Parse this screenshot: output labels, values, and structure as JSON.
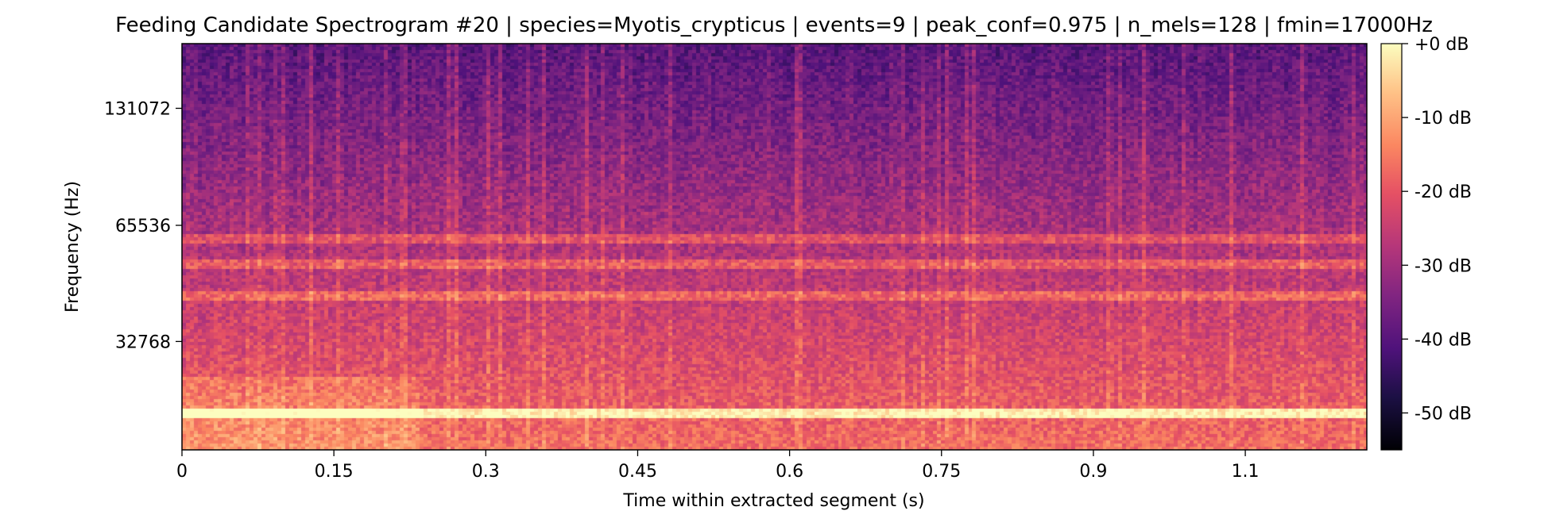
{
  "chart_data": {
    "type": "heatmap",
    "title": "Feeding Candidate Spectrogram #20 | species=Myotis_crypticus | events=9 | peak_conf=0.975 | n_mels=128 | fmin=17000Hz",
    "xlabel": "Time within extracted segment (s)",
    "ylabel": "Frequency (Hz)",
    "xlim": [
      0,
      1.17
    ],
    "x_ticks": [
      0,
      0.15,
      0.3,
      0.45,
      0.6,
      0.75,
      0.9,
      1.05
    ],
    "x_tick_labels": [
      "0",
      "0.15",
      "0.3",
      "0.45",
      "0.6",
      "0.75",
      "0.9",
      "1.1"
    ],
    "y_scale": "mel",
    "ylim": [
      17000,
      192000
    ],
    "y_ticks": [
      32768,
      65536,
      131072
    ],
    "y_tick_labels": [
      "32768",
      "65536",
      "131072"
    ],
    "colormap": "magma",
    "colorbar": {
      "range_db": [
        -55,
        0
      ],
      "ticks": [
        0,
        -10,
        -20,
        -30,
        -40,
        -50
      ],
      "tick_labels": [
        "+0 dB",
        "-10 dB",
        "-20 dB",
        "-30 dB",
        "-40 dB",
        "-50 dB"
      ]
    },
    "dominant_bands_hz": [
      21000,
      43000,
      52000,
      60000
    ],
    "grid": false
  }
}
